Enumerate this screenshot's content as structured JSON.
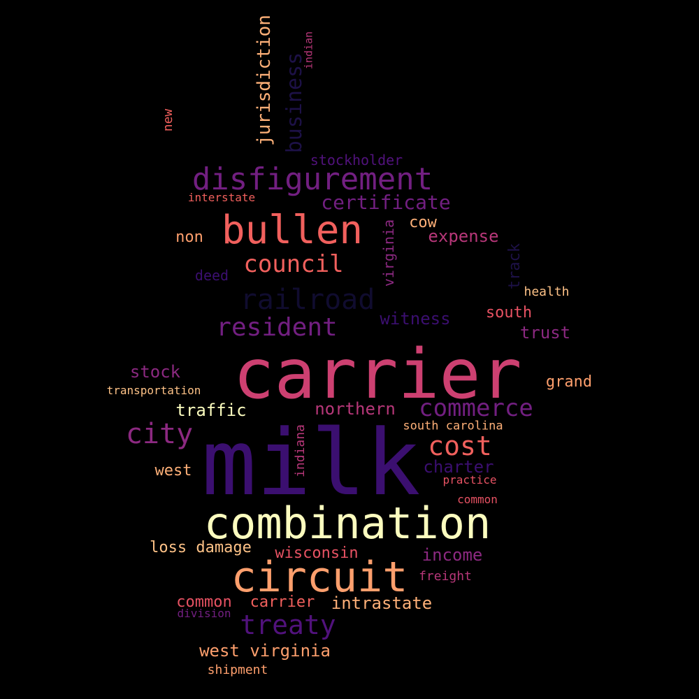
{
  "background_color": "#000000",
  "words": [
    {
      "text": "carrier",
      "color": "#cd4071"
    },
    {
      "text": "milk",
      "color": "#3b0f70"
    },
    {
      "text": "combination",
      "color": "#fcfdbf"
    },
    {
      "text": "circuit",
      "color": "#fe9f6d"
    },
    {
      "text": "bullen",
      "color": "#f1605d"
    },
    {
      "text": "disfigurement",
      "color": "#721f81"
    },
    {
      "text": "certificate",
      "color": "#721f81"
    },
    {
      "text": "council",
      "color": "#f1605d"
    },
    {
      "text": "railroad",
      "color": "#100c2f"
    },
    {
      "text": "resident",
      "color": "#721f81"
    },
    {
      "text": "city",
      "color": "#8c2981"
    },
    {
      "text": "commerce",
      "color": "#721f81"
    },
    {
      "text": "cost",
      "color": "#f1605d"
    },
    {
      "text": "treaty",
      "color": "#51127c"
    },
    {
      "text": "jurisdiction",
      "color": "#feb078"
    },
    {
      "text": "business",
      "color": "#1d1147"
    },
    {
      "text": "indian",
      "color": "#b73779"
    },
    {
      "text": "new",
      "color": "#f1605d"
    },
    {
      "text": "stockholder",
      "color": "#51127c"
    },
    {
      "text": "interstate",
      "color": "#f1605d"
    },
    {
      "text": "virginia",
      "color": "#8c2981"
    },
    {
      "text": "cow",
      "color": "#feb078"
    },
    {
      "text": "expense",
      "color": "#b73779"
    },
    {
      "text": "non",
      "color": "#fe9f6d"
    },
    {
      "text": "deed",
      "color": "#3b0f70"
    },
    {
      "text": "track",
      "color": "#1d1147"
    },
    {
      "text": "health",
      "color": "#fec287"
    },
    {
      "text": "south",
      "color": "#e75263"
    },
    {
      "text": "trust",
      "color": "#8c2981"
    },
    {
      "text": "witness",
      "color": "#3b0f70"
    },
    {
      "text": "stock",
      "color": "#8c2981"
    },
    {
      "text": "transportation",
      "color": "#fec287"
    },
    {
      "text": "grand",
      "color": "#fe9f6d"
    },
    {
      "text": "traffic",
      "color": "#fcfdbf"
    },
    {
      "text": "northern",
      "color": "#b73779"
    },
    {
      "text": "south carolina",
      "color": "#feb078"
    },
    {
      "text": "indiana",
      "color": "#b73779"
    },
    {
      "text": "charter",
      "color": "#3b0f70"
    },
    {
      "text": "west",
      "color": "#feb078"
    },
    {
      "text": "practice",
      "color": "#e75263"
    },
    {
      "text": "common",
      "color": "#e75263"
    },
    {
      "text": "loss damage",
      "color": "#fec287"
    },
    {
      "text": "wisconsin",
      "color": "#e75263"
    },
    {
      "text": "income",
      "color": "#8c2981"
    },
    {
      "text": "freight",
      "color": "#b73779"
    },
    {
      "text": "common",
      "color": "#e75263"
    },
    {
      "text": "carrier",
      "color": "#f1605d"
    },
    {
      "text": "intrastate",
      "color": "#feb078"
    },
    {
      "text": "division",
      "color": "#721f81"
    },
    {
      "text": "west virginia",
      "color": "#fe9f6d"
    },
    {
      "text": "shipment",
      "color": "#fe9f6d"
    }
  ]
}
